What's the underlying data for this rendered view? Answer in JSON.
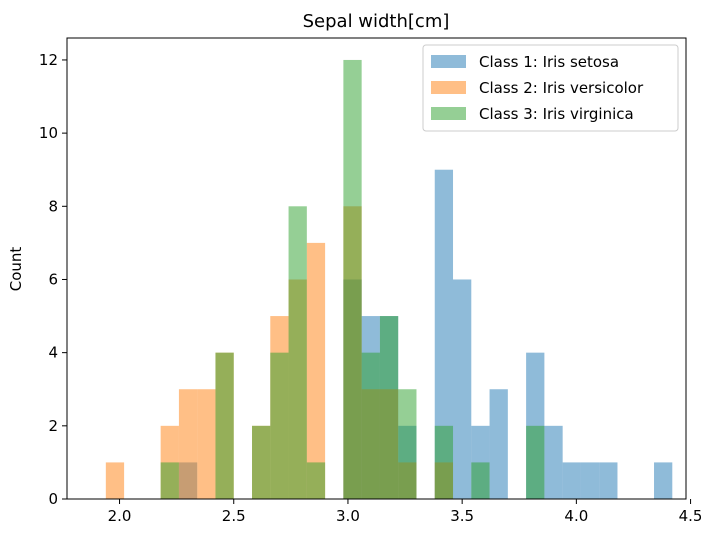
{
  "chart_data": {
    "type": "bar",
    "title": "Sepal width[cm]",
    "xlabel": "",
    "ylabel": "Count",
    "xlim": [
      1.77,
      4.48
    ],
    "ylim": [
      0,
      12.6
    ],
    "xticks": [
      "2.0",
      "2.5",
      "3.0",
      "3.5",
      "4.0",
      "4.5"
    ],
    "yticks": [
      "0",
      "2",
      "4",
      "6",
      "8",
      "10",
      "12"
    ],
    "bin_width": 0.08,
    "legend_position": "top-right",
    "bar_opacity": 0.5,
    "series": [
      {
        "name": "Class 1: Iris setosa",
        "color": "#1f77b4",
        "bins": [
          {
            "x": 2.26,
            "count": 1
          },
          {
            "x": 2.98,
            "count": 6
          },
          {
            "x": 3.06,
            "count": 5
          },
          {
            "x": 3.14,
            "count": 5
          },
          {
            "x": 3.22,
            "count": 2
          },
          {
            "x": 3.38,
            "count": 9
          },
          {
            "x": 3.46,
            "count": 6
          },
          {
            "x": 3.54,
            "count": 2
          },
          {
            "x": 3.62,
            "count": 3
          },
          {
            "x": 3.78,
            "count": 4
          },
          {
            "x": 3.86,
            "count": 2
          },
          {
            "x": 3.94,
            "count": 1
          },
          {
            "x": 4.02,
            "count": 1
          },
          {
            "x": 4.1,
            "count": 1
          },
          {
            "x": 4.34,
            "count": 1
          }
        ]
      },
      {
        "name": "Class 2: Iris versicolor",
        "color": "#ff7f0e",
        "bins": [
          {
            "x": 1.94,
            "count": 1
          },
          {
            "x": 2.18,
            "count": 2
          },
          {
            "x": 2.26,
            "count": 3
          },
          {
            "x": 2.34,
            "count": 3
          },
          {
            "x": 2.42,
            "count": 4
          },
          {
            "x": 2.58,
            "count": 2
          },
          {
            "x": 2.66,
            "count": 5
          },
          {
            "x": 2.74,
            "count": 6
          },
          {
            "x": 2.82,
            "count": 7
          },
          {
            "x": 2.98,
            "count": 8
          },
          {
            "x": 3.06,
            "count": 3
          },
          {
            "x": 3.14,
            "count": 3
          },
          {
            "x": 3.22,
            "count": 1
          },
          {
            "x": 3.38,
            "count": 1
          }
        ]
      },
      {
        "name": "Class 3: Iris virginica",
        "color": "#2ca02c",
        "bins": [
          {
            "x": 2.18,
            "count": 1
          },
          {
            "x": 2.42,
            "count": 4
          },
          {
            "x": 2.58,
            "count": 2
          },
          {
            "x": 2.66,
            "count": 4
          },
          {
            "x": 2.74,
            "count": 8
          },
          {
            "x": 2.82,
            "count": 1
          },
          {
            "x": 2.98,
            "count": 12
          },
          {
            "x": 3.06,
            "count": 4
          },
          {
            "x": 3.14,
            "count": 5
          },
          {
            "x": 3.22,
            "count": 3
          },
          {
            "x": 3.38,
            "count": 2
          },
          {
            "x": 3.54,
            "count": 1
          },
          {
            "x": 3.78,
            "count": 2
          }
        ]
      }
    ]
  }
}
